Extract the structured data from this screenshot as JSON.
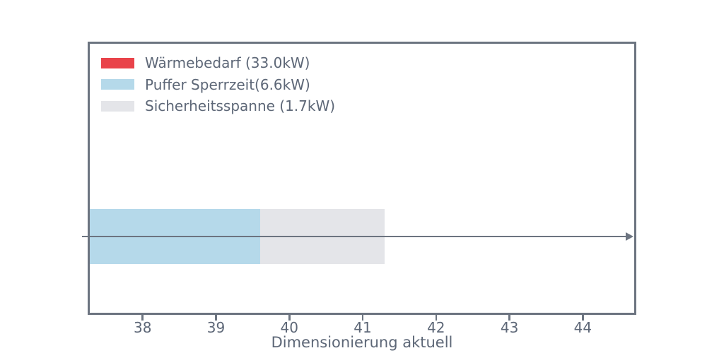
{
  "colors": {
    "axis_line": "#6c7480",
    "text": "#5d6777",
    "background": "#ffffff"
  },
  "chart_data": {
    "type": "bar",
    "orientation": "horizontal",
    "stacked": true,
    "categories": [
      ""
    ],
    "series": [
      {
        "name": "Wärmebedarf (33.0kW)",
        "values": [
          33.0
        ],
        "color": "#e9434a"
      },
      {
        "name": "Puffer Sperrzeit(6.6kW)",
        "values": [
          6.6
        ],
        "color": "#b5d9ea"
      },
      {
        "name": "Sicherheitsspanne (1.7kW)",
        "values": [
          1.7
        ],
        "color": "#e4e5e9"
      }
    ],
    "title": "",
    "xlabel": "Dimensionierung aktuell",
    "ylabel": "",
    "xticks": [
      38,
      39,
      40,
      41,
      42,
      43,
      44
    ],
    "xlim": [
      37.28,
      44.7
    ],
    "grid": false,
    "legend_position": "upper left",
    "annotations": [
      {
        "type": "arrow",
        "direction": "right",
        "at": "bar-vertical-center",
        "span": "full-axis-width"
      }
    ],
    "notes": "stacked segments start at 0; axis is zoomed so the red segment (0-33) lies left of view"
  }
}
